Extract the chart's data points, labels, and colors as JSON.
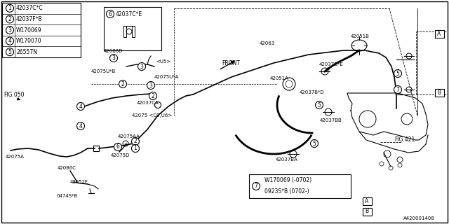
{
  "bg_color": "#ffffff",
  "diagram_code": "A420001408",
  "fig_refs": [
    "FIG.050",
    "FIG.421"
  ],
  "legend_items": [
    {
      "num": "1",
      "code": "42037C*C"
    },
    {
      "num": "2",
      "code": "42037F*B"
    },
    {
      "num": "3",
      "code": "W170069"
    },
    {
      "num": "4",
      "code": "W170070"
    },
    {
      "num": "5",
      "code": "26557N"
    }
  ],
  "callout6_code": "42037C*E",
  "callout7_items": [
    "W170069 (-0702)",
    "0923S*B (0702-)"
  ],
  "front_label": "FRONT"
}
